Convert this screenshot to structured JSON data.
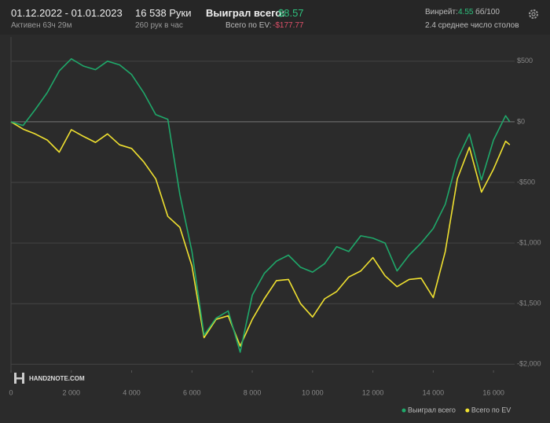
{
  "header": {
    "period": "01.12.2022 - 01.01.2023",
    "active": "Активен 63ч 29м",
    "hands": "16 538 Руки",
    "hands_per_hour": "260 рук в час",
    "won_label": "Выиграл всего:",
    "won_value": "$8.57",
    "ev_label": "Всего по EV:",
    "ev_value": "-$177.77",
    "winrate_label": "Винрейт:",
    "winrate_value": "4.55",
    "winrate_unit": "бб/100",
    "tables": "2.4 среднее число столов",
    "logo": "HAND2NOTE.COM"
  },
  "chart_data": {
    "type": "line",
    "x": [
      0,
      400,
      800,
      1200,
      1600,
      2000,
      2400,
      2800,
      3200,
      3600,
      4000,
      4400,
      4800,
      5200,
      5600,
      6000,
      6400,
      6800,
      7200,
      7600,
      8000,
      8400,
      8800,
      9200,
      9600,
      10000,
      10400,
      10800,
      11200,
      11600,
      12000,
      12400,
      12800,
      13200,
      13600,
      14000,
      14400,
      14800,
      15200,
      15600,
      16000,
      16400,
      16538
    ],
    "series": [
      {
        "name": "Выиграл всего",
        "color": "#1fa86a",
        "values": [
          0,
          -30,
          100,
          240,
          420,
          520,
          460,
          430,
          500,
          470,
          390,
          240,
          60,
          20,
          -600,
          -1070,
          -1760,
          -1620,
          -1560,
          -1900,
          -1430,
          -1250,
          -1150,
          -1100,
          -1200,
          -1240,
          -1170,
          -1030,
          -1070,
          -940,
          -960,
          -1000,
          -1230,
          -1100,
          -1000,
          -880,
          -680,
          -310,
          -100,
          -480,
          -150,
          50,
          0
        ]
      },
      {
        "name": "Всего по EV",
        "color": "#f0e130",
        "values": [
          0,
          -60,
          -100,
          -150,
          -250,
          -65,
          -120,
          -170,
          -100,
          -190,
          -220,
          -330,
          -470,
          -780,
          -870,
          -1190,
          -1780,
          -1630,
          -1600,
          -1850,
          -1630,
          -1460,
          -1310,
          -1300,
          -1500,
          -1610,
          -1460,
          -1400,
          -1280,
          -1230,
          -1120,
          -1270,
          -1360,
          -1300,
          -1290,
          -1450,
          -1070,
          -470,
          -210,
          -580,
          -390,
          -160,
          -190
        ]
      }
    ],
    "xlim": [
      0,
      16700
    ],
    "xticks": [
      0,
      {
        "value": 2000,
        "label": "2 000"
      },
      {
        "value": 4000,
        "label": "4 000"
      },
      {
        "value": 6000,
        "label": "6 000"
      },
      {
        "value": 8000,
        "label": "8 000"
      },
      {
        "value": 10000,
        "label": "10 000"
      },
      {
        "value": 12000,
        "label": "12 000"
      },
      {
        "value": 14000,
        "label": "14 000"
      },
      {
        "value": 16000,
        "label": "16 000"
      }
    ],
    "ylim": [
      -2050,
      700
    ],
    "yticks": [
      {
        "value": 500,
        "label": "$500"
      },
      {
        "value": 0,
        "label": "$0"
      },
      {
        "value": -500,
        "label": "-$500"
      },
      {
        "value": -1000,
        "label": "-$1,000"
      },
      {
        "value": -1500,
        "label": "-$1,500"
      },
      {
        "value": -2000,
        "label": "-$2,000"
      }
    ],
    "grid": true
  }
}
